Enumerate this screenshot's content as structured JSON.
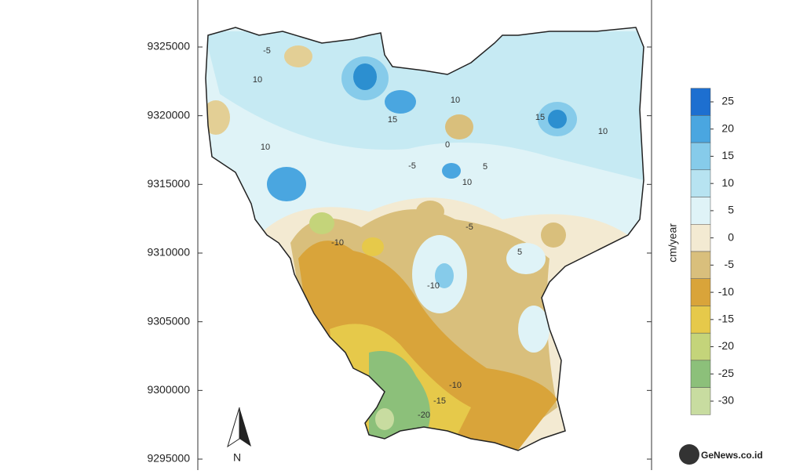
{
  "map": {
    "yticks": [
      9325000,
      9320000,
      9315000,
      9310000,
      9305000,
      9300000,
      9295000
    ],
    "contour_labels": [
      "-5",
      "10",
      "15",
      "10",
      "0",
      "-5",
      "5",
      "-10",
      "15",
      "10",
      "5",
      "-10",
      "-15",
      "-20",
      "-5",
      "10",
      "-10",
      "10"
    ],
    "north_label": "N",
    "colorbar": {
      "label": "cm/year",
      "ticks": [
        25,
        20,
        15,
        10,
        5,
        0,
        -5,
        -10,
        -15,
        -20,
        -25,
        -30
      ],
      "colors": [
        "#1d6fd0",
        "#4aa6e0",
        "#86cbea",
        "#b7e3f1",
        "#dff3f7",
        "#f3ead2",
        "#d9bf7c",
        "#d9a43a",
        "#e6c94a",
        "#c4d47a",
        "#8cc07a",
        "#c8dca0"
      ]
    },
    "watermark": "GeNews.co.id"
  }
}
